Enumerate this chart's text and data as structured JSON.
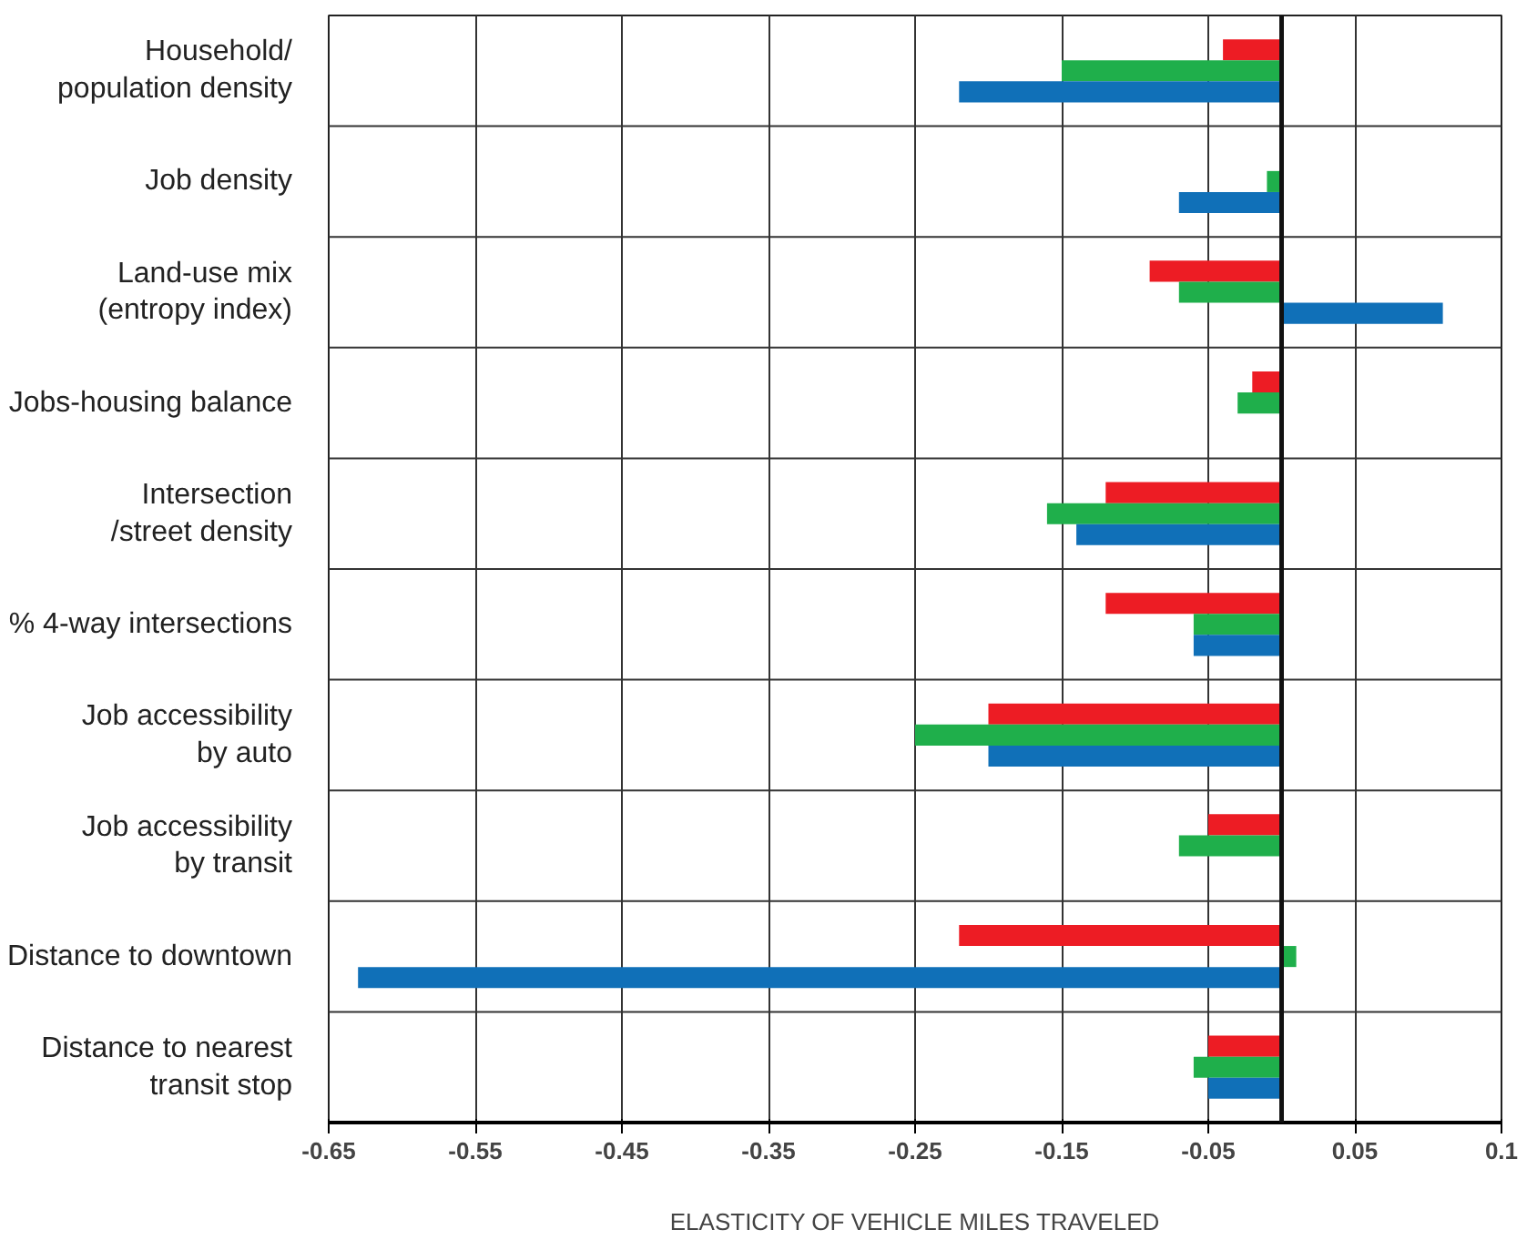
{
  "chart_data": {
    "type": "bar",
    "orientation": "horizontal",
    "xlabel": "ELASTICITY OF VEHICLE MILES TRAVELED",
    "categories": [
      "Household/\npopulation density",
      "Job density",
      "Land-use mix\n(entropy index)",
      "Jobs-housing balance",
      "Intersection\n/street density",
      "% 4-way intersections",
      "Job accessibility\nby auto",
      "Job accessibility\nby transit",
      "Distance to downtown",
      "Distance to nearest\ntransit stop"
    ],
    "series": [
      {
        "color": "#ed1c24",
        "values": [
          -0.04,
          null,
          -0.09,
          -0.02,
          -0.12,
          -0.12,
          -0.2,
          -0.05,
          -0.22,
          -0.05
        ]
      },
      {
        "color": "#1faf4b",
        "values": [
          -0.15,
          -0.01,
          -0.07,
          -0.03,
          -0.16,
          -0.06,
          -0.25,
          -0.07,
          0.01,
          -0.06
        ]
      },
      {
        "color": "#1070b8",
        "values": [
          -0.22,
          -0.07,
          0.11,
          null,
          -0.14,
          -0.06,
          -0.2,
          null,
          -0.63,
          -0.05
        ]
      }
    ],
    "xlim": [
      -0.65,
      0.15
    ],
    "xticks": [
      -0.65,
      -0.55,
      -0.45,
      -0.35,
      -0.25,
      -0.15,
      -0.05,
      0.05,
      {
        "value": 0.15,
        "label": "0.1"
      }
    ],
    "ref_lines": [
      {
        "axis": "x",
        "value": 0,
        "color": "#111111"
      }
    ],
    "grid": true
  }
}
